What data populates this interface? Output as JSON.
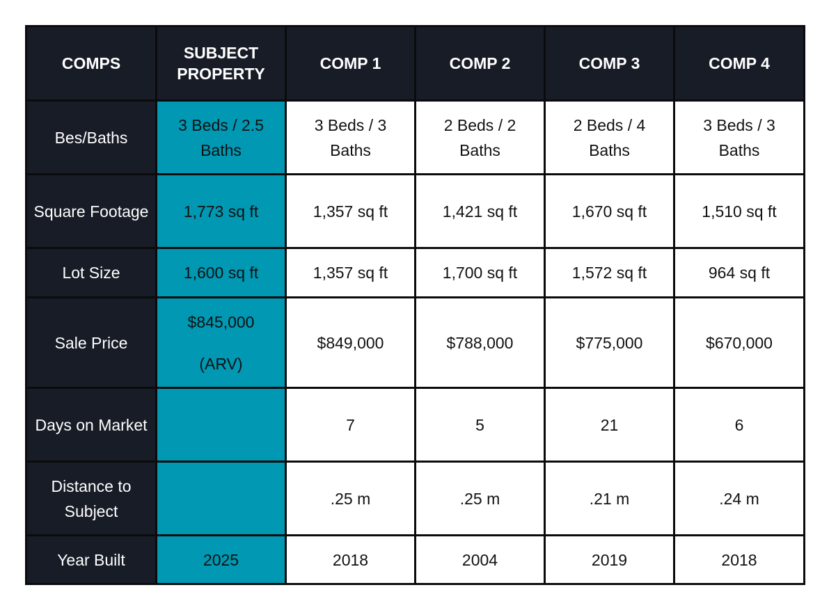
{
  "colors": {
    "header_bg": "#171c27",
    "subject_bg": "#0098b3",
    "cell_bg": "#ffffff",
    "border": "#0b0b0b"
  },
  "headers": {
    "label": "COMPS",
    "subject_line1": "SUBJECT",
    "subject_line2": "PROPERTY",
    "comp1": "COMP 1",
    "comp2": "COMP 2",
    "comp3": "COMP 3",
    "comp4": "COMP 4"
  },
  "rows": {
    "beds_baths": {
      "label": "Bes/Baths",
      "subject": "3 Beds / 2.5 Baths",
      "comp1": "3 Beds / 3 Baths",
      "comp2": "2 Beds / 2 Baths",
      "comp3": "2 Beds / 4 Baths",
      "comp4": "3 Beds / 3 Baths"
    },
    "square_footage": {
      "label": "Square Footage",
      "subject": "1,773 sq ft",
      "comp1": "1,357 sq ft",
      "comp2": "1,421 sq ft",
      "comp3": "1,670 sq ft",
      "comp4": "1,510 sq ft"
    },
    "lot_size": {
      "label": "Lot Size",
      "subject": "1,600 sq ft",
      "comp1": "1,357 sq ft",
      "comp2": "1,700 sq ft",
      "comp3": "1,572 sq ft",
      "comp4": "964 sq ft"
    },
    "sale_price": {
      "label": "Sale Price",
      "subject": "$845,000",
      "subject_note": "(ARV)",
      "comp1": "$849,000",
      "comp2": "$788,000",
      "comp3": "$775,000",
      "comp4": "$670,000"
    },
    "days_on_market": {
      "label": "Days on Market",
      "subject": "",
      "comp1": "7",
      "comp2": "5",
      "comp3": "21",
      "comp4": "6"
    },
    "distance": {
      "label": "Distance to Subject",
      "subject": "",
      "comp1": ".25 m",
      "comp2": ".25 m",
      "comp3": ".21 m",
      "comp4": ".24 m"
    },
    "year_built": {
      "label": "Year Built",
      "subject": "2025",
      "comp1": "2018",
      "comp2": "2004",
      "comp3": "2019",
      "comp4": "2018"
    }
  }
}
